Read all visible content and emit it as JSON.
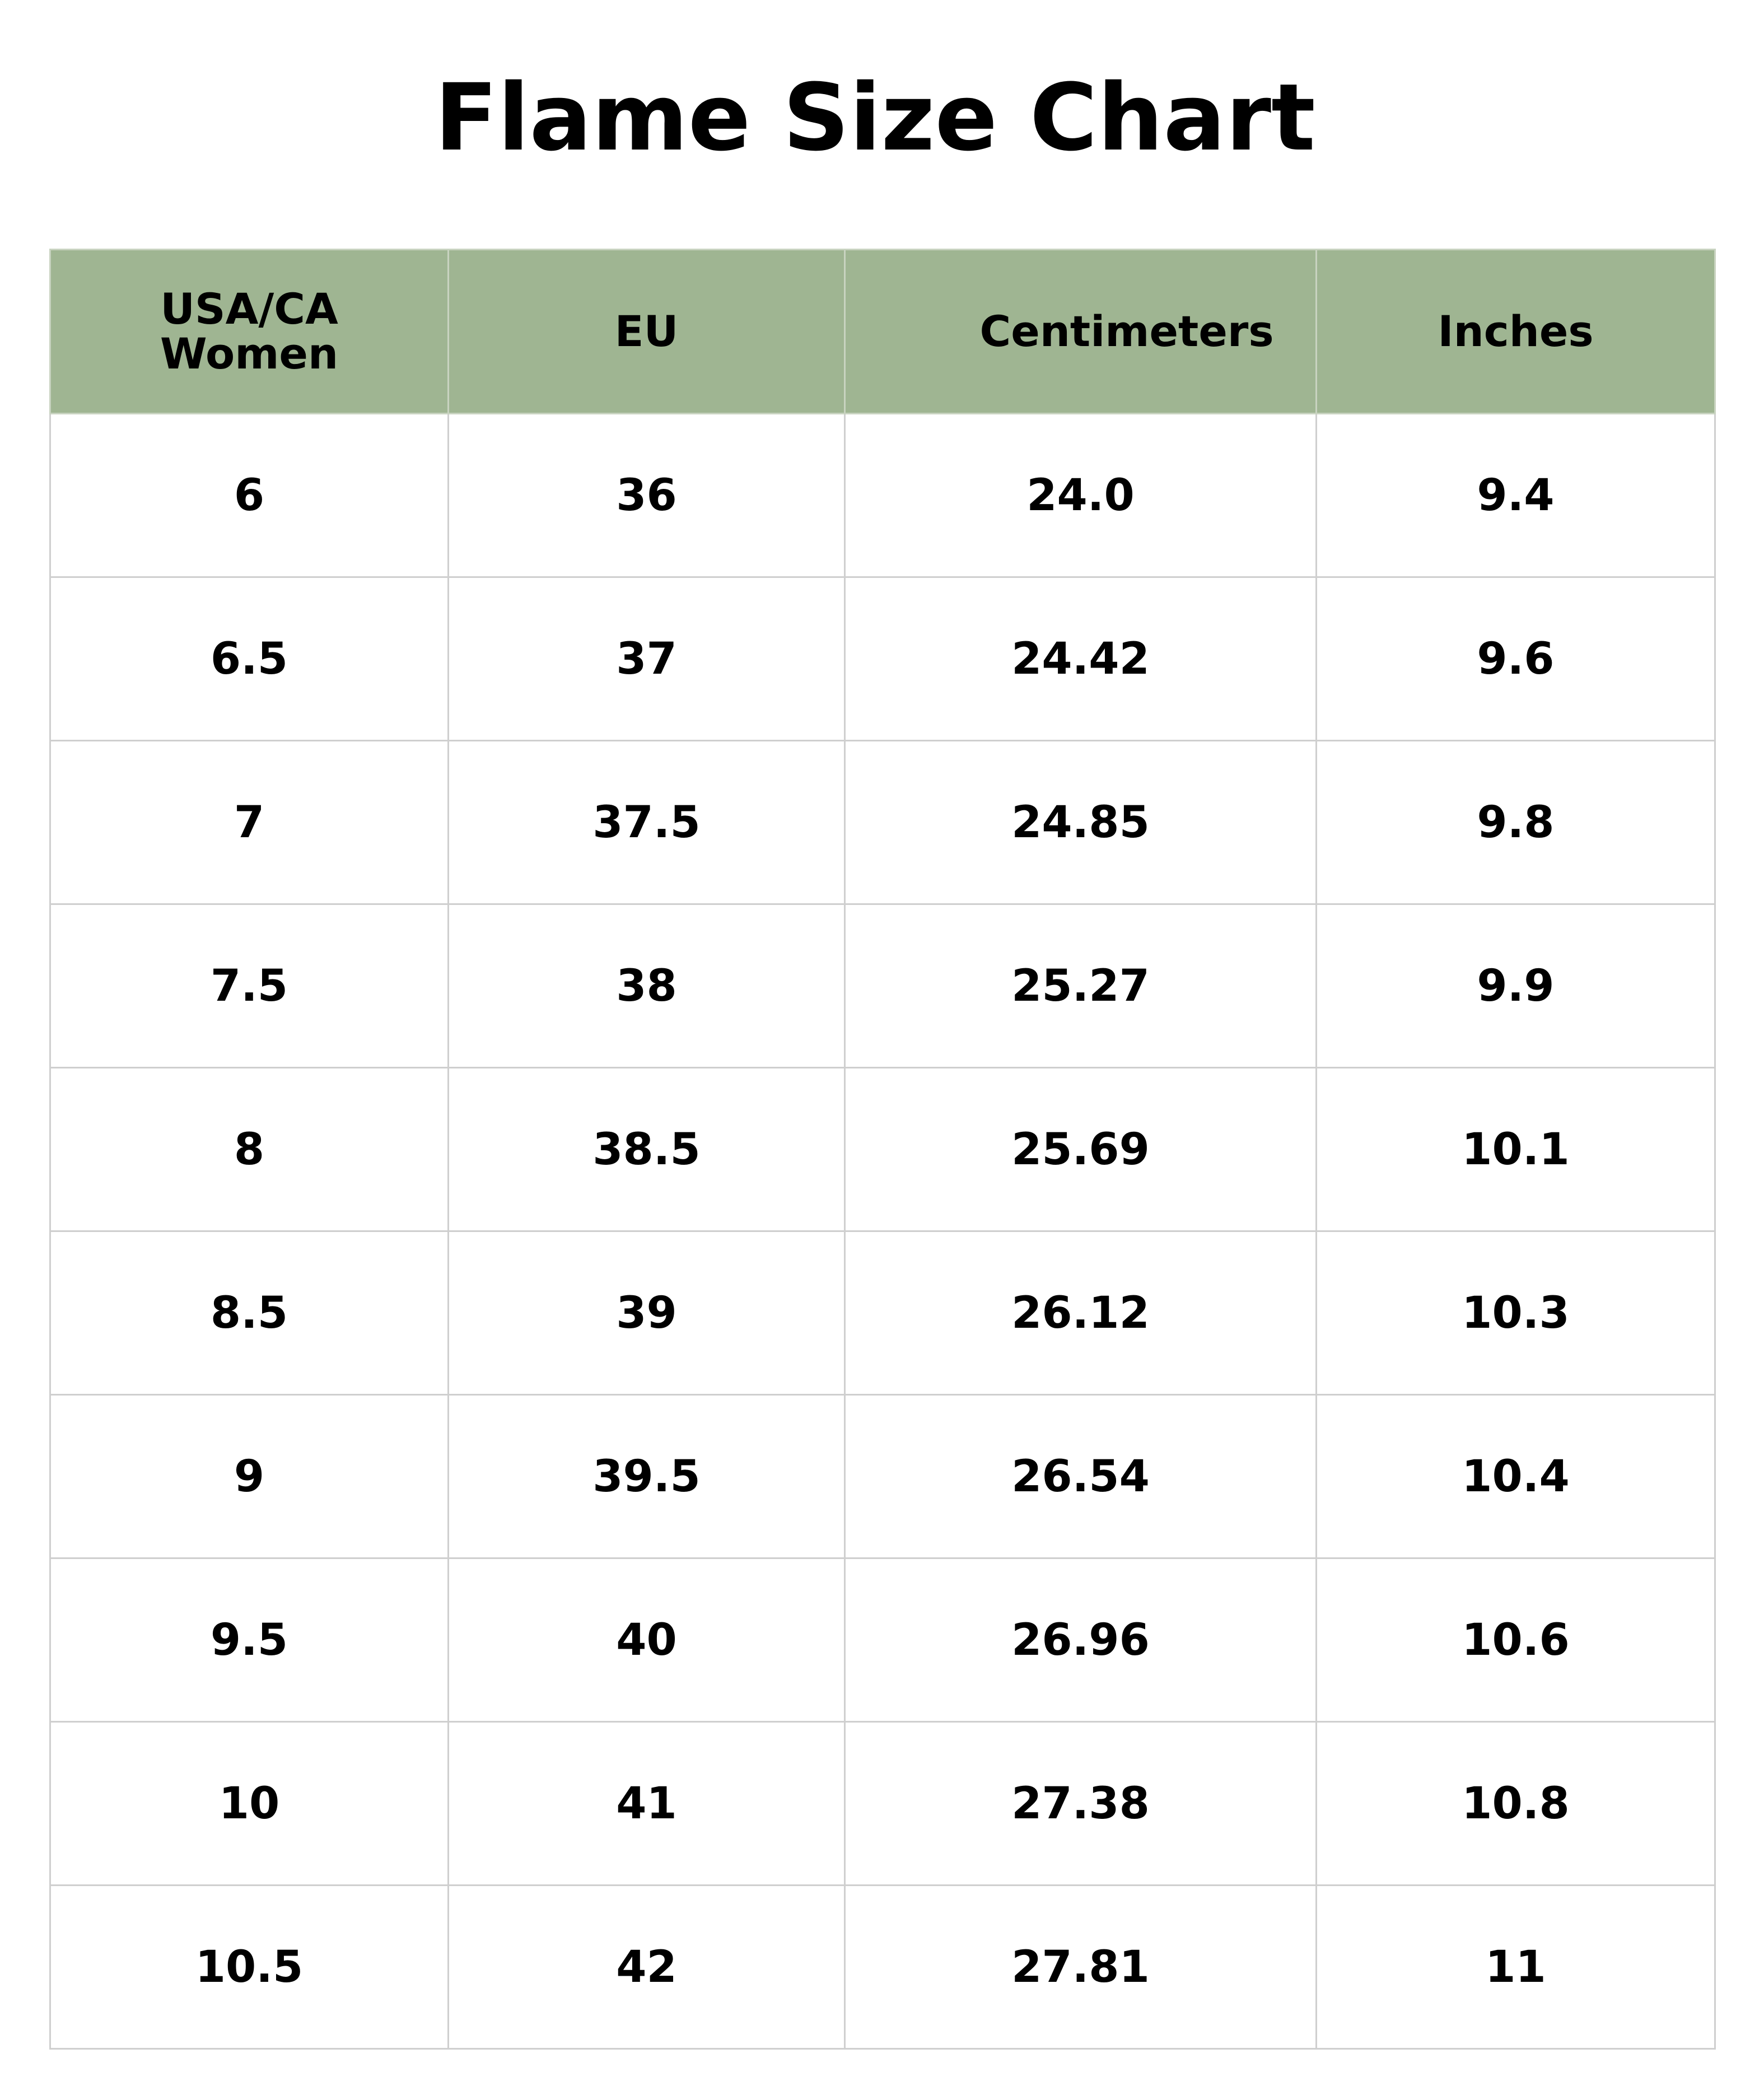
{
  "title": "Flame Size Chart",
  "table": {
    "header": [
      "USA/CA Women",
      "EU",
      "Centimeters",
      "Inches"
    ],
    "rows": [
      [
        "6",
        "36",
        "24.0",
        "9.4"
      ],
      [
        "6.5",
        "37",
        "24.42",
        "9.6"
      ],
      [
        "7",
        "37.5",
        "24.85",
        "9.8"
      ],
      [
        "7.5",
        "38",
        "25.27",
        "9.9"
      ],
      [
        "8",
        "38.5",
        "25.69",
        "10.1"
      ],
      [
        "8.5",
        "39",
        "26.12",
        "10.3"
      ],
      [
        "9",
        "39.5",
        "26.54",
        "10.4"
      ],
      [
        "9.5",
        "40",
        "26.96",
        "10.6"
      ],
      [
        "10",
        "41",
        "27.38",
        "10.8"
      ],
      [
        "10.5",
        "42",
        "27.81",
        "11"
      ]
    ]
  }
}
